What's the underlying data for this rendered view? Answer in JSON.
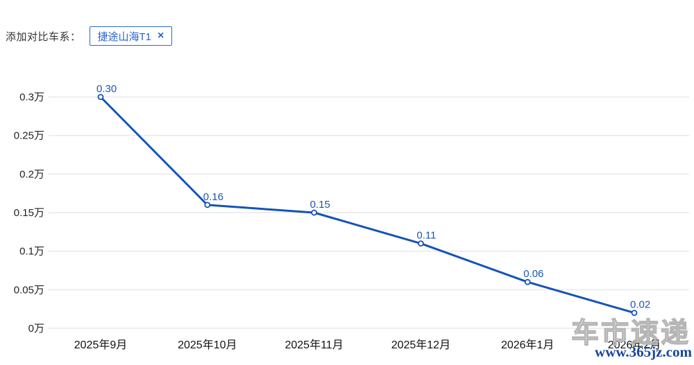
{
  "header": {
    "label": "添加对比车系：",
    "chip": {
      "label": "捷途山海T1",
      "close_icon": "×"
    }
  },
  "colors": {
    "line": "#1553b8",
    "point_fill": "#ffffff",
    "point_label": "#1a56b0",
    "grid": "#e9e9e9",
    "y_tick_text": "#222222",
    "x_tick_text": "#111111",
    "chip_blue": "#2a6ad0",
    "watermark_outline": "#b5b5b5",
    "watermark_url": "#16459e"
  },
  "chart_data": {
    "type": "line",
    "series_name": "捷途山海T1",
    "categories": [
      "2025年9月",
      "2025年10月",
      "2025年11月",
      "2025年12月",
      "2026年1月",
      "2026年2月"
    ],
    "values": [
      0.3,
      0.16,
      0.15,
      0.11,
      0.06,
      0.02
    ],
    "point_labels": [
      "0.30",
      "0.16",
      "0.15",
      "0.11",
      "0.06",
      "0.02"
    ],
    "y_ticks": [
      0,
      0.05,
      0.1,
      0.15,
      0.2,
      0.25,
      0.3
    ],
    "y_tick_labels": [
      "0万",
      "0.05万",
      "0.1万",
      "0.15万",
      "0.2万",
      "0.25万",
      "0.3万"
    ],
    "ylim": [
      0,
      0.3
    ],
    "unit": "万",
    "grid": true,
    "legend_position": "none",
    "title": "",
    "xlabel": "",
    "ylabel": ""
  },
  "watermark": {
    "brand": "车市速递",
    "url": "www.365jz.com"
  }
}
